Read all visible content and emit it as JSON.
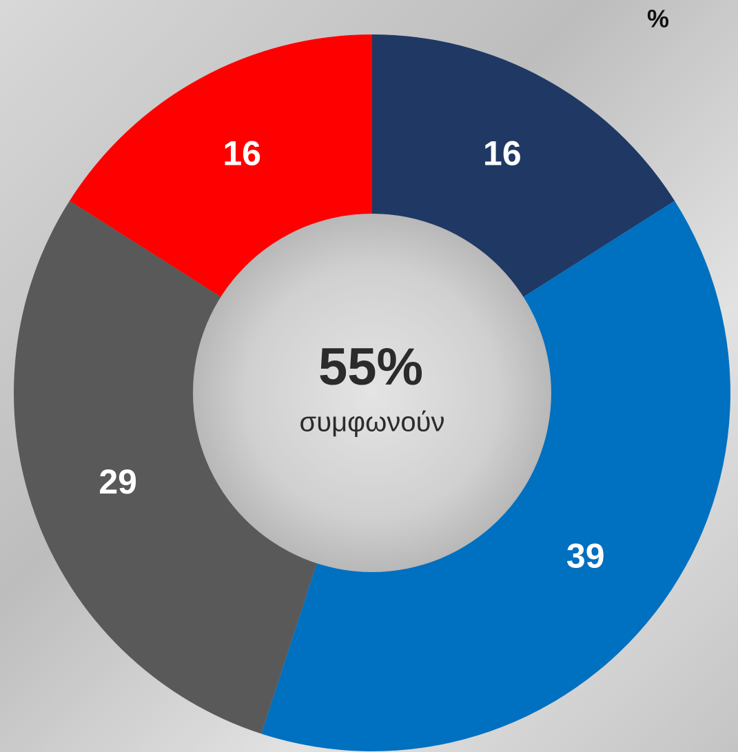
{
  "chart_data": {
    "type": "donut",
    "unit_label": "%",
    "values": [
      16,
      39,
      29,
      16
    ],
    "colors": [
      "#203864",
      "#0070c0",
      "#595959",
      "#ff0000"
    ],
    "center_value": "55%",
    "center_text": "συμφωνούν"
  }
}
